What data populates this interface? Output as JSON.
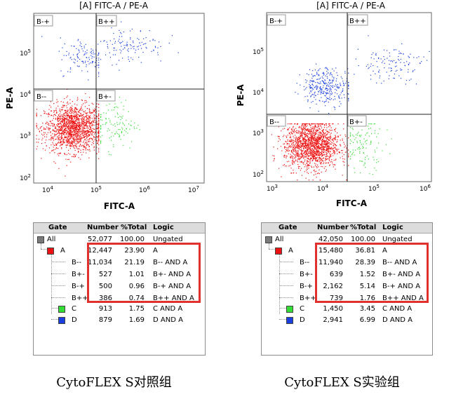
{
  "panels": [
    {
      "plot_title": "[A] FITC-A / PE-A",
      "xlabel": "FITC-A",
      "ylabel": "PE-A",
      "quadrant_labels": [
        "B-+",
        "B++",
        "B--",
        "B+-"
      ],
      "stats": {
        "headers": [
          "Gate",
          "Number",
          "%Total",
          "Logic"
        ],
        "rows": [
          {
            "name": "All",
            "number": "52,077",
            "pct": "100.00",
            "logic": "Ungated",
            "color": "#7a7a7a"
          },
          {
            "name": "A",
            "number": "12,447",
            "pct": "23.90",
            "logic": "A",
            "color": "#ee1111"
          },
          {
            "name": "B--",
            "number": "11,034",
            "pct": "21.19",
            "logic": "B-- AND A",
            "color": ""
          },
          {
            "name": "B+-",
            "number": "527",
            "pct": "1.01",
            "logic": "B+- AND A",
            "color": ""
          },
          {
            "name": "B-+",
            "number": "500",
            "pct": "0.96",
            "logic": "B-+ AND A",
            "color": ""
          },
          {
            "name": "B++",
            "number": "386",
            "pct": "0.74",
            "logic": "B++ AND A",
            "color": ""
          },
          {
            "name": "C",
            "number": "913",
            "pct": "1.75",
            "logic": "C AND A",
            "color": "#33dd33"
          },
          {
            "name": "D",
            "number": "879",
            "pct": "1.69",
            "logic": "D AND A",
            "color": "#1a3fe0"
          }
        ]
      },
      "caption": "CytoFLEX S对照组"
    },
    {
      "plot_title": "[A] FITC-A / PE-A",
      "xlabel": "FITC-A",
      "ylabel": "PE-A",
      "quadrant_labels": [
        "B-+",
        "B++",
        "B--",
        "B+-"
      ],
      "stats": {
        "headers": [
          "Gate",
          "Number",
          "%Total",
          "Logic"
        ],
        "rows": [
          {
            "name": "All",
            "number": "42,050",
            "pct": "100.00",
            "logic": "Ungated",
            "color": "#7a7a7a"
          },
          {
            "name": "A",
            "number": "15,480",
            "pct": "36.81",
            "logic": "A",
            "color": "#ee1111"
          },
          {
            "name": "B--",
            "number": "11,940",
            "pct": "28.39",
            "logic": "B-- AND A",
            "color": ""
          },
          {
            "name": "B+-",
            "number": "639",
            "pct": "1.52",
            "logic": "B+- AND A",
            "color": ""
          },
          {
            "name": "B-+",
            "number": "2,162",
            "pct": "5.14",
            "logic": "B-+ AND A",
            "color": ""
          },
          {
            "name": "B++",
            "number": "739",
            "pct": "1.76",
            "logic": "B++ AND A",
            "color": ""
          },
          {
            "name": "C",
            "number": "1,450",
            "pct": "3.45",
            "logic": "C AND A",
            "color": "#33dd33"
          },
          {
            "name": "D",
            "number": "2,941",
            "pct": "6.99",
            "logic": "D AND A",
            "color": "#1a3fe0"
          }
        ]
      },
      "caption": "CytoFLEX S实验组"
    }
  ],
  "chart_data": [
    {
      "type": "scatter",
      "title": "[A] FITC-A / PE-A",
      "xlabel": "FITC-A",
      "ylabel": "PE-A",
      "log_scale": true,
      "x_ticks": [
        "10^4",
        "10^5",
        "10^6",
        "10^7"
      ],
      "y_ticks": [
        "10^2",
        "10^3",
        "10^4",
        "10^5"
      ],
      "xlim": [
        5000,
        12000000
      ],
      "ylim": [
        60,
        600000
      ],
      "quadrant_gate": {
        "x": 100000,
        "y": 12000
      },
      "populations": [
        {
          "name": "B--",
          "color": "#ee1111",
          "count": 11034,
          "center": [
            30000,
            1200
          ]
        },
        {
          "name": "B+-",
          "color": "#33dd33",
          "count": 527,
          "center": [
            200000,
            1500
          ]
        },
        {
          "name": "B-+",
          "color": "#1a3fe0",
          "count": 500,
          "center": [
            50000,
            60000
          ]
        },
        {
          "name": "B++",
          "color": "#1a3fe0",
          "count": 386,
          "center": [
            400000,
            110000
          ]
        }
      ]
    },
    {
      "type": "scatter",
      "title": "[A] FITC-A / PE-A",
      "xlabel": "FITC-A",
      "ylabel": "PE-A",
      "log_scale": true,
      "x_ticks": [
        "10^3",
        "10^4",
        "10^5",
        "10^6"
      ],
      "y_ticks": [
        "10^2",
        "10^3",
        "10^4",
        "10^5"
      ],
      "xlim": [
        600,
        1500000
      ],
      "ylim": [
        80,
        800000
      ],
      "quadrant_gate": {
        "x": 30000,
        "y": 2000
      },
      "populations": [
        {
          "name": "B--",
          "color": "#ee1111",
          "count": 11940,
          "center": [
            5000,
            600
          ]
        },
        {
          "name": "B+-",
          "color": "#33dd33",
          "count": 639,
          "center": [
            60000,
            600
          ]
        },
        {
          "name": "B-+",
          "color": "#1a3fe0",
          "count": 2162,
          "center": [
            10000,
            15000
          ]
        },
        {
          "name": "B++",
          "color": "#1a3fe0",
          "count": 739,
          "center": [
            200000,
            50000
          ]
        }
      ]
    }
  ]
}
